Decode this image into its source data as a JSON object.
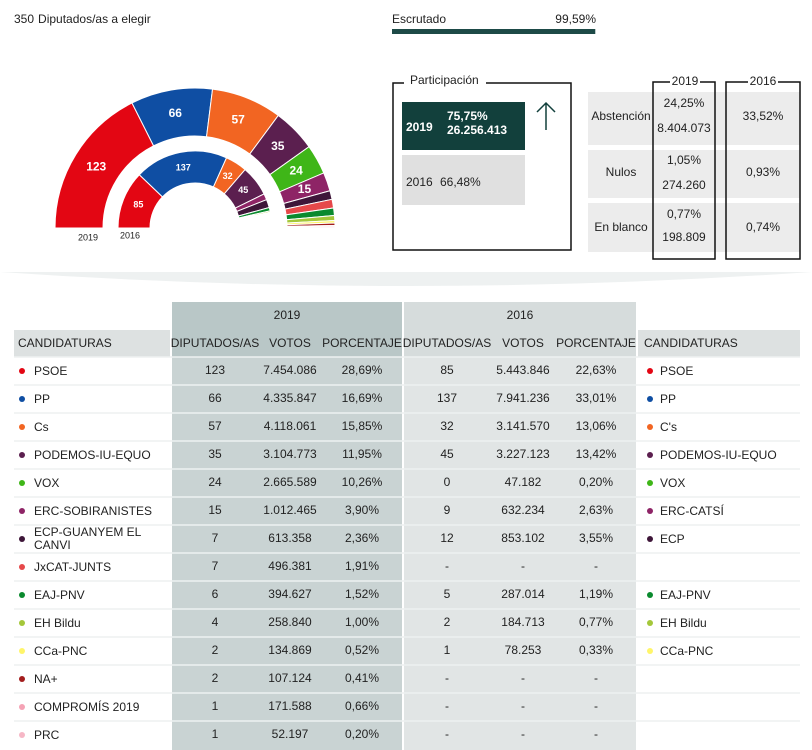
{
  "header": {
    "seats_total": 350,
    "seats_text": "Diputados/as a elegir"
  },
  "scrutiny": {
    "label": "Escrutado",
    "value": 99.59,
    "value_label": "99,59%"
  },
  "hemicycle": {
    "labels": [
      "2019",
      "2016"
    ]
  },
  "participation": {
    "title": "Participación",
    "rows": [
      {
        "year": "2019",
        "percent": "75,75%",
        "votes": "26.256.413"
      },
      {
        "year": "2016",
        "percent": "66,48%"
      }
    ]
  },
  "summary": {
    "years": [
      "2019",
      "2016"
    ],
    "rows": [
      {
        "label": "Abstención",
        "pct_2019": "24,25%",
        "votes_2019": "8.404.073",
        "pct_2016": "33,52%"
      },
      {
        "label": "Nulos",
        "pct_2019": "1,05%",
        "votes_2019": "274.260",
        "pct_2016": "0,93%"
      },
      {
        "label": "En blanco",
        "pct_2019": "0,77%",
        "votes_2019": "198.809",
        "pct_2016": "0,74%"
      }
    ]
  },
  "results": {
    "years": [
      "2019",
      "2016"
    ],
    "columns": [
      "CANDIDATURAS",
      "DIPUTADOS/AS",
      "VOTOS",
      "PORCENTAJE",
      "DIPUTADOS/AS",
      "VOTOS",
      "PORCENTAJE",
      "CANDIDATURAS"
    ],
    "rows": [
      {
        "name": "PSOE",
        "color": "#e30613",
        "seats_2019": 123,
        "votes_2019": "7.454.086",
        "pct_2019": "28,69%",
        "seats_2016": 85,
        "votes_2016": "5.443.846",
        "pct_2016": "22,63%",
        "name_2016": "PSOE"
      },
      {
        "name": "PP",
        "color": "#0f4ea3",
        "seats_2019": 66,
        "votes_2019": "4.335.847",
        "pct_2019": "16,69%",
        "seats_2016": 137,
        "votes_2016": "7.941.236",
        "pct_2016": "33,01%",
        "name_2016": "PP"
      },
      {
        "name": "Cs",
        "color": "#f26522",
        "seats_2019": 57,
        "votes_2019": "4.118.061",
        "pct_2019": "15,85%",
        "seats_2016": 32,
        "votes_2016": "3.141.570",
        "pct_2016": "13,06%",
        "name_2016": "C's"
      },
      {
        "name": "PODEMOS-IU-EQUO",
        "color": "#5b1f4f",
        "seats_2019": 35,
        "votes_2019": "3.104.773",
        "pct_2019": "11,95%",
        "seats_2016": 45,
        "votes_2016": "3.227.123",
        "pct_2016": "13,42%",
        "name_2016": "PODEMOS-IU-EQUO"
      },
      {
        "name": "VOX",
        "color": "#3fb618",
        "seats_2019": 24,
        "votes_2019": "2.665.589",
        "pct_2019": "10,26%",
        "seats_2016": 0,
        "votes_2016": "47.182",
        "pct_2016": "0,20%",
        "name_2016": "VOX"
      },
      {
        "name": "ERC-SOBIRANISTES",
        "color": "#8e2466",
        "seats_2019": 15,
        "votes_2019": "1.012.465",
        "pct_2019": "3,90%",
        "seats_2016": 9,
        "votes_2016": "632.234",
        "pct_2016": "2,63%",
        "name_2016": "ERC-CATSÍ"
      },
      {
        "name": "ECP-GUANYEM EL CANVI",
        "color": "#3e1639",
        "seats_2019": 7,
        "votes_2019": "613.358",
        "pct_2019": "2,36%",
        "seats_2016": 12,
        "votes_2016": "853.102",
        "pct_2016": "3,55%",
        "name_2016": "ECP"
      },
      {
        "name": "JxCAT-JUNTS",
        "color": "#e6484a",
        "seats_2019": 7,
        "votes_2019": "496.381",
        "pct_2019": "1,91%",
        "seats_2016": "-",
        "votes_2016": "-",
        "pct_2016": "-"
      },
      {
        "name": "EAJ-PNV",
        "color": "#0a8a2e",
        "seats_2019": 6,
        "votes_2019": "394.627",
        "pct_2019": "1,52%",
        "seats_2016": 5,
        "votes_2016": "287.014",
        "pct_2016": "1,19%",
        "name_2016": "EAJ-PNV"
      },
      {
        "name": "EH Bildu",
        "color": "#a4c73a",
        "seats_2019": 4,
        "votes_2019": "258.840",
        "pct_2019": "1,00%",
        "seats_2016": 2,
        "votes_2016": "184.713",
        "pct_2016": "0,77%",
        "name_2016": "EH Bildu"
      },
      {
        "name": "CCa-PNC",
        "color": "#fff56a",
        "seats_2019": 2,
        "votes_2019": "134.869",
        "pct_2019": "0,52%",
        "seats_2016": 1,
        "votes_2016": "78.253",
        "pct_2016": "0,33%",
        "name_2016": "CCa-PNC"
      },
      {
        "name": "NA+",
        "color": "#a31d1d",
        "seats_2019": 2,
        "votes_2019": "107.124",
        "pct_2019": "0,41%",
        "seats_2016": "-",
        "votes_2016": "-",
        "pct_2016": "-"
      },
      {
        "name": "COMPROMÍS 2019",
        "color": "#f5a3b5",
        "seats_2019": 1,
        "votes_2019": "171.588",
        "pct_2019": "0,66%",
        "seats_2016": "-",
        "votes_2016": "-",
        "pct_2016": "-"
      },
      {
        "name": "PRC",
        "color": "#f6b7c6",
        "seats_2019": 1,
        "votes_2019": "52.197",
        "pct_2019": "0,20%",
        "seats_2016": "-",
        "votes_2016": "-",
        "pct_2016": "-"
      }
    ]
  }
}
